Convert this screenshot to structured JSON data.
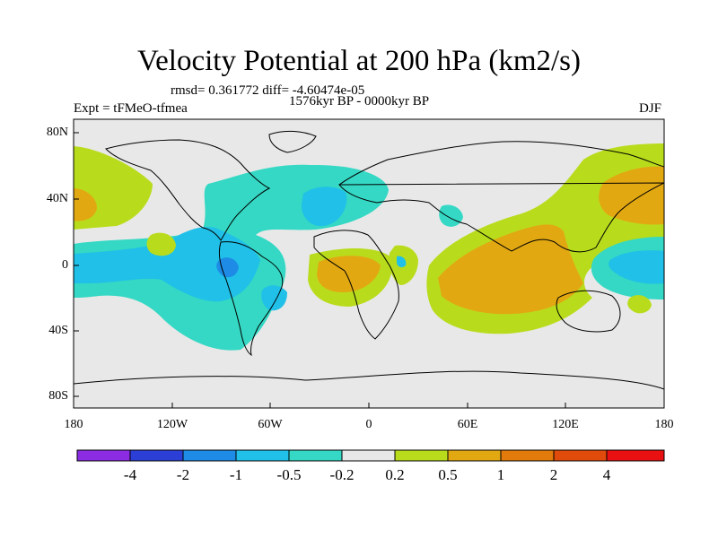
{
  "title": "Velocity Potential at 200 hPa (km2/s)",
  "stats": "rmsd= 0.361772 diff= -4.60474e-05",
  "period": "1576kyr BP - 0000kyr BP",
  "experiment": "Expt = tFMeO-tfmea",
  "season": "DJF",
  "axes": {
    "x_ticks": [
      "180",
      "120W",
      "60W",
      "0",
      "60E",
      "120E",
      "180"
    ],
    "y_ticks": [
      "80N",
      "40N",
      "0",
      "40S",
      "80S"
    ]
  },
  "colorbar": {
    "labels": [
      "-4",
      "-2",
      "-1",
      "-0.5",
      "-0.2",
      "0.2",
      "0.5",
      "1",
      "2",
      "4"
    ],
    "colors": [
      "#8b2be2",
      "#2b3fd6",
      "#1e8ce6",
      "#20c0e8",
      "#34d8c4",
      "#e8e8e8",
      "#b8dc1c",
      "#e2a812",
      "#e27a0c",
      "#e04a0a",
      "#e81010"
    ]
  },
  "palette": {
    "land_ocean": "#e8e8e8",
    "neg_weak": "#34d8c4",
    "neg_mid": "#20c0e8",
    "neg_strong": "#1e8ce6",
    "pos_weak": "#b8dc1c",
    "pos_mid": "#e2a812"
  }
}
